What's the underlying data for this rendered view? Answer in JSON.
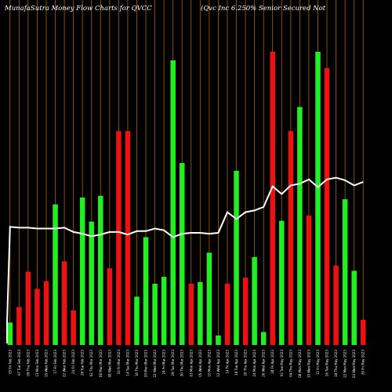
{
  "header": {
    "title_left": "MunafaSutra  Money Flow  Charts for QVCC",
    "title_right": "(Qvc Inc 6.250% Senior Secured Not"
  },
  "chart_data": {
    "type": "bar",
    "title": "MunafaSutra Money Flow Charts for QVCC",
    "subtitle": "(Qvc Inc 6.250% Senior Secured Not",
    "categories": [
      "03 Fri Feb 2023",
      "07 Tue Feb 2023",
      "09 Thu Feb 2023",
      "13 Mon Feb 2023",
      "15 Wed Feb 2023",
      "17 Fri Feb 2023",
      "22 Wed Feb 2023",
      "24 Fri Feb 2023",
      "28 Tue Feb 2023",
      "02 Thu Mar 2023",
      "06 Mon Mar 2023",
      "08 Wed Mar 2023",
      "10 Fri Mar 2023",
      "14 Tue Mar 2023",
      "16 Thu Mar 2023",
      "20 Mon Mar 2023",
      "22 Wed Mar 2023",
      "24 Fri Mar 2023",
      "28 Tue Mar 2023",
      "30 Thu Mar 2023",
      "03 Mon Apr 2023",
      "05 Wed Apr 2023",
      "10 Mon Apr 2023",
      "12 Wed Apr 2023",
      "14 Fri Apr 2023",
      "18 Tue Apr 2023",
      "20 Thu Apr 2023",
      "24 Mon Apr 2023",
      "26 Wed Apr 2023",
      "28 Fri Apr 2023",
      "02 Tue May 2023",
      "04 Thu May 2023",
      "08 Mon May 2023",
      "10 Wed May 2023",
      "12 Fri May 2023",
      "16 Tue May 2023",
      "18 Thu May 2023",
      "22 Mon May 2023",
      "24 Wed May 2023",
      "26 Fri May 2023"
    ],
    "values": [
      26,
      44,
      85,
      65,
      74,
      163,
      97,
      40,
      171,
      143,
      173,
      89,
      248,
      248,
      56,
      125,
      71,
      79,
      330,
      211,
      71,
      73,
      107,
      11,
      71,
      202,
      78,
      102,
      15,
      340,
      144,
      248,
      276,
      150,
      340,
      321,
      92,
      169,
      86,
      29
    ],
    "colors": [
      "green",
      "red",
      "red",
      "red",
      "red",
      "green",
      "red",
      "red",
      "green",
      "green",
      "green",
      "red",
      "red",
      "red",
      "green",
      "green",
      "green",
      "green",
      "green",
      "green",
      "red",
      "green",
      "green",
      "green",
      "red",
      "green",
      "red",
      "green",
      "green",
      "red",
      "green",
      "red",
      "green",
      "red",
      "green",
      "red",
      "red",
      "green",
      "green",
      "red"
    ],
    "line": [
      137,
      136,
      136,
      135,
      135,
      135,
      136,
      131,
      129,
      126,
      128,
      131,
      131,
      128,
      132,
      132,
      135,
      133,
      125,
      129,
      130,
      130,
      129,
      130,
      154,
      146,
      154,
      156,
      160,
      184,
      175,
      185,
      187,
      192,
      183,
      192,
      194,
      191,
      185,
      189
    ],
    "ylim": [
      0,
      400
    ],
    "grid": "vertical",
    "series_colors": {
      "green": "#22ee22",
      "red": "#ee1111",
      "line": "#ffffff",
      "grid": "#a8620a"
    }
  }
}
